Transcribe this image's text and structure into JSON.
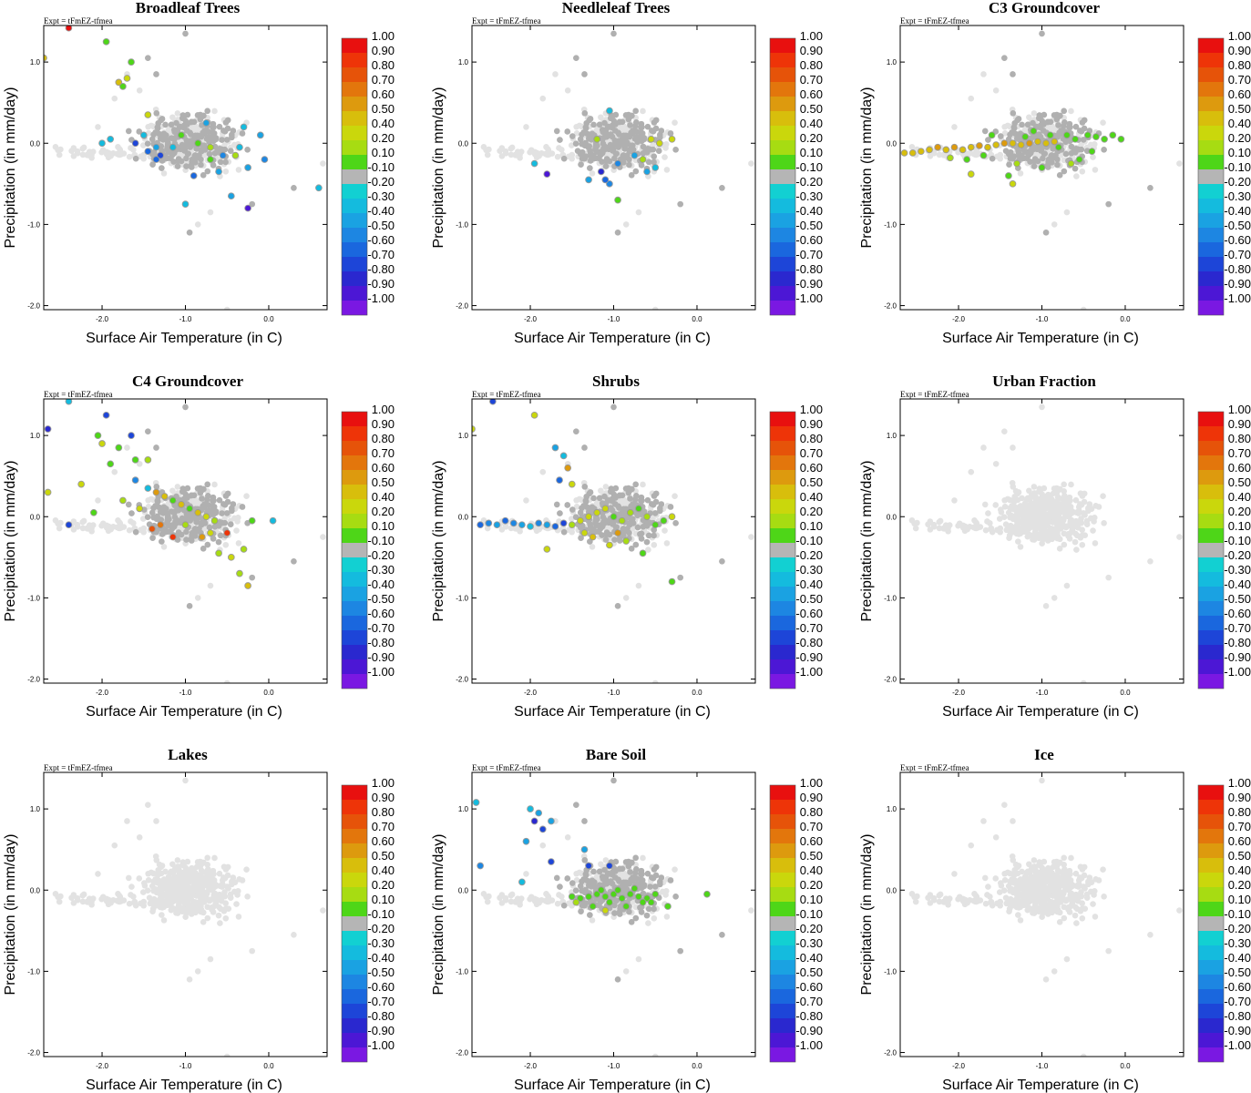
{
  "figure": {
    "expt_label": "Expt = tFmEZ-tfmea",
    "colorbar_levels": [
      "1.00",
      "0.90",
      "0.80",
      "0.70",
      "0.60",
      "0.50",
      "0.40",
      "0.20",
      "0.10",
      "-0.10",
      "-0.20",
      "-0.30",
      "-0.40",
      "-0.50",
      "-0.60",
      "-0.70",
      "-0.80",
      "-0.90",
      "-1.00"
    ],
    "colorbar_colors": [
      "#e8100f",
      "#ee3408",
      "#e65309",
      "#e3760c",
      "#dd9a0e",
      "#d8be0c",
      "#cad70c",
      "#a7dc12",
      "#4ed618",
      "#b5b5b5",
      "#12d0d2",
      "#14bbde",
      "#1aa2e2",
      "#1d86e2",
      "#1a67de",
      "#1d45d8",
      "#2a28cf",
      "#4c17d5",
      "#7a18e2"
    ],
    "neutral_grey": "#b0b0b0",
    "background_grey": "#e2e2e2"
  },
  "chart_data": [
    {
      "type": "scatter",
      "title": "Broadleaf Trees",
      "xlabel": "Surface Air Temperature (in C)",
      "ylabel": "Precipitation (in mm/day)",
      "xlim": [
        -2.7,
        0.7
      ],
      "ylim": [
        -2.05,
        1.45
      ],
      "xticks": [
        "-2.0",
        "-1.0",
        "0.0"
      ],
      "yticks": [
        "1.0",
        "0.0",
        "-1.0",
        "-2.0"
      ],
      "points": [
        [
          -2.4,
          1.42,
          1.0
        ],
        [
          -2.7,
          1.05,
          0.45
        ],
        [
          -1.95,
          1.25,
          0.1
        ],
        [
          -1.65,
          1.0,
          0.1
        ],
        [
          -1.8,
          0.75,
          0.5
        ],
        [
          -1.7,
          0.8,
          0.3
        ],
        [
          -1.45,
          0.35,
          0.3
        ],
        [
          -1.75,
          0.7,
          0.1
        ],
        [
          -1.05,
          0.1,
          0.1
        ],
        [
          -0.85,
          0.0,
          0.1
        ],
        [
          -0.7,
          -0.2,
          0.1
        ],
        [
          -0.4,
          -0.15,
          0.15
        ],
        [
          -0.3,
          0.2,
          -0.2
        ],
        [
          -1.9,
          0.05,
          -0.2
        ],
        [
          -2.0,
          0.0,
          -0.2
        ],
        [
          -1.5,
          0.1,
          -0.2
        ],
        [
          -1.35,
          -0.05,
          -0.3
        ],
        [
          -1.3,
          -0.15,
          -0.6
        ],
        [
          -1.35,
          -0.2,
          -0.5
        ],
        [
          -1.15,
          -0.05,
          -0.2
        ],
        [
          -0.6,
          -0.35,
          -0.3
        ],
        [
          -0.9,
          -0.4,
          -0.5
        ],
        [
          -0.55,
          -0.15,
          -0.4
        ],
        [
          -0.35,
          -0.05,
          -0.2
        ],
        [
          -0.25,
          -0.3,
          -0.3
        ],
        [
          -1.0,
          -0.75,
          -0.2
        ],
        [
          -0.45,
          -0.65,
          -0.3
        ],
        [
          -0.25,
          -0.8,
          -0.8
        ],
        [
          0.6,
          -0.55,
          -0.2
        ],
        [
          -0.75,
          0.25,
          -0.3
        ],
        [
          -1.45,
          -0.1,
          -0.5
        ],
        [
          -0.1,
          0.1,
          -0.3
        ],
        [
          -0.05,
          -0.2,
          -0.4
        ],
        [
          -0.7,
          -0.05,
          0.15
        ],
        [
          -1.6,
          0.0,
          -0.6
        ]
      ]
    },
    {
      "type": "scatter",
      "title": "Needleleaf Trees",
      "xlabel": "Surface Air Temperature (in C)",
      "ylabel": "Precipitation (in mm/day)",
      "xlim": [
        -2.7,
        0.7
      ],
      "ylim": [
        -2.05,
        1.45
      ],
      "xticks": [
        "-2.0",
        "-1.0",
        "0.0"
      ],
      "yticks": [
        "1.0",
        "0.0",
        "-1.0",
        "-2.0"
      ],
      "points": [
        [
          -1.8,
          -0.38,
          -0.8
        ],
        [
          -1.95,
          -0.25,
          -0.2
        ],
        [
          -1.05,
          0.4,
          -0.2
        ],
        [
          -1.2,
          0.05,
          0.15
        ],
        [
          -0.55,
          0.05,
          0.4
        ],
        [
          -0.45,
          0.0,
          0.3
        ],
        [
          -0.75,
          -0.15,
          -0.3
        ],
        [
          -0.95,
          -0.25,
          -0.4
        ],
        [
          -1.05,
          -0.5,
          -0.4
        ],
        [
          -0.95,
          -0.7,
          0.1
        ],
        [
          -0.6,
          -0.35,
          -0.3
        ],
        [
          -0.5,
          -0.3,
          -0.2
        ],
        [
          -0.3,
          0.05,
          0.35
        ],
        [
          -1.1,
          -0.45,
          -0.5
        ],
        [
          -1.3,
          -0.45,
          -0.3
        ],
        [
          -1.15,
          -0.35,
          -0.7
        ],
        [
          -0.65,
          -0.2,
          0.15
        ]
      ]
    },
    {
      "type": "scatter",
      "title": "C3 Groundcover",
      "xlabel": "Surface Air Temperature (in C)",
      "ylabel": "Precipitation (in mm/day)",
      "xlim": [
        -2.7,
        0.7
      ],
      "ylim": [
        -2.05,
        1.45
      ],
      "xticks": [
        "-2.0",
        "-1.0",
        "0.0"
      ],
      "yticks": [
        "1.0",
        "0.0",
        "-1.0",
        "-2.0"
      ],
      "points": [
        [
          -2.65,
          -0.12,
          0.5
        ],
        [
          -2.55,
          -0.12,
          0.5
        ],
        [
          -2.45,
          -0.1,
          0.5
        ],
        [
          -2.35,
          -0.08,
          0.45
        ],
        [
          -2.25,
          -0.05,
          0.6
        ],
        [
          -2.15,
          -0.08,
          0.5
        ],
        [
          -2.05,
          -0.05,
          0.55
        ],
        [
          -1.95,
          -0.08,
          0.5
        ],
        [
          -1.85,
          -0.05,
          0.5
        ],
        [
          -1.75,
          -0.03,
          0.55
        ],
        [
          -1.65,
          -0.05,
          0.5
        ],
        [
          -1.55,
          -0.02,
          0.5
        ],
        [
          -1.45,
          0.0,
          0.55
        ],
        [
          -1.35,
          0.0,
          0.5
        ],
        [
          -1.25,
          -0.02,
          0.5
        ],
        [
          -1.15,
          0.0,
          0.55
        ],
        [
          -1.05,
          0.02,
          0.5
        ],
        [
          -0.95,
          0.0,
          0.5
        ],
        [
          -0.85,
          0.02,
          0.45
        ],
        [
          -2.1,
          -0.18,
          0.2
        ],
        [
          -1.9,
          -0.2,
          0.1
        ],
        [
          -1.7,
          -0.15,
          0.1
        ],
        [
          -1.6,
          0.1,
          0.1
        ],
        [
          -1.3,
          -0.25,
          0.15
        ],
        [
          -1.2,
          0.08,
          0.1
        ],
        [
          -1.1,
          0.15,
          0.1
        ],
        [
          -0.9,
          0.1,
          0.1
        ],
        [
          -0.8,
          -0.05,
          0.1
        ],
        [
          -0.7,
          0.1,
          0.1
        ],
        [
          -0.6,
          0.05,
          0.1
        ],
        [
          -0.55,
          -0.2,
          0.1
        ],
        [
          -0.45,
          0.1,
          0.1
        ],
        [
          -0.35,
          0.08,
          0.1
        ],
        [
          -0.25,
          0.05,
          0.1
        ],
        [
          -0.15,
          0.1,
          0.1
        ],
        [
          -0.05,
          0.05,
          0.1
        ],
        [
          -1.0,
          -0.3,
          0.1
        ],
        [
          -1.4,
          -0.4,
          0.1
        ],
        [
          -1.85,
          -0.38,
          0.3
        ],
        [
          -1.35,
          -0.5,
          0.3
        ],
        [
          -0.65,
          -0.25,
          0.15
        ],
        [
          -0.4,
          -0.1,
          0.1
        ]
      ]
    },
    {
      "type": "scatter",
      "title": "C4 Groundcover",
      "xlabel": "Surface Air Temperature (in C)",
      "ylabel": "Precipitation (in mm/day)",
      "xlim": [
        -2.7,
        0.7
      ],
      "ylim": [
        -2.05,
        1.45
      ],
      "xticks": [
        "-2.0",
        "-1.0",
        "0.0"
      ],
      "yticks": [
        "1.0",
        "0.0",
        "-1.0",
        "-2.0"
      ],
      "points": [
        [
          -2.65,
          1.08,
          -0.7
        ],
        [
          -2.4,
          1.42,
          -0.2
        ],
        [
          -1.95,
          1.25,
          -0.6
        ],
        [
          -2.05,
          1.0,
          0.1
        ],
        [
          -1.65,
          1.0,
          -0.6
        ],
        [
          -2.0,
          0.9,
          0.3
        ],
        [
          -1.8,
          0.85,
          0.1
        ],
        [
          -1.6,
          0.7,
          0.1
        ],
        [
          -1.45,
          0.7,
          0.15
        ],
        [
          -1.9,
          0.65,
          0.1
        ],
        [
          -2.65,
          0.3,
          0.4
        ],
        [
          -2.25,
          0.4,
          0.4
        ],
        [
          -1.6,
          0.45,
          -0.4
        ],
        [
          -1.45,
          0.35,
          -0.2
        ],
        [
          -1.35,
          0.3,
          0.6
        ],
        [
          -1.25,
          0.25,
          0.5
        ],
        [
          -1.15,
          0.2,
          0.1
        ],
        [
          -1.05,
          0.15,
          0.5
        ],
        [
          -0.95,
          0.1,
          0.1
        ],
        [
          -0.85,
          0.05,
          0.5
        ],
        [
          -0.75,
          0.0,
          0.4
        ],
        [
          -0.65,
          -0.05,
          0.15
        ],
        [
          -1.4,
          -0.15,
          0.8
        ],
        [
          -1.3,
          -0.1,
          0.7
        ],
        [
          -1.15,
          -0.25,
          0.9
        ],
        [
          -0.8,
          -0.25,
          0.6
        ],
        [
          -0.5,
          -0.2,
          0.9
        ],
        [
          -0.45,
          -0.5,
          0.3
        ],
        [
          -0.6,
          -0.45,
          0.15
        ],
        [
          -0.3,
          -0.4,
          0.2
        ],
        [
          -0.25,
          -0.85,
          0.5
        ],
        [
          -0.35,
          -0.7,
          0.15
        ],
        [
          -2.4,
          -0.1,
          -0.6
        ],
        [
          -2.1,
          0.05,
          0.1
        ],
        [
          -1.0,
          -0.1,
          0.15
        ],
        [
          -0.2,
          -0.05,
          0.1
        ],
        [
          0.05,
          -0.05,
          -0.2
        ],
        [
          -0.7,
          -0.2,
          0.3
        ],
        [
          -1.55,
          0.1,
          0.4
        ],
        [
          -1.75,
          0.2,
          0.15
        ]
      ]
    },
    {
      "type": "scatter",
      "title": "Shrubs",
      "xlabel": "Surface Air Temperature (in C)",
      "ylabel": "Precipitation (in mm/day)",
      "xlim": [
        -2.7,
        0.7
      ],
      "ylim": [
        -2.05,
        1.45
      ],
      "xticks": [
        "-2.0",
        "-1.0",
        "0.0"
      ],
      "yticks": [
        "1.0",
        "0.0",
        "-1.0",
        "-2.0"
      ],
      "points": [
        [
          -2.7,
          1.08,
          0.3
        ],
        [
          -2.45,
          1.42,
          -0.6
        ],
        [
          -1.95,
          1.25,
          0.4
        ],
        [
          -1.7,
          0.85,
          -0.3
        ],
        [
          -1.6,
          0.75,
          -0.2
        ],
        [
          -1.55,
          0.6,
          0.6
        ],
        [
          -1.65,
          0.45,
          -0.5
        ],
        [
          -1.5,
          0.4,
          0.3
        ],
        [
          -2.6,
          -0.1,
          -0.5
        ],
        [
          -2.5,
          -0.08,
          -0.4
        ],
        [
          -2.4,
          -0.1,
          -0.3
        ],
        [
          -2.3,
          -0.05,
          -0.5
        ],
        [
          -2.2,
          -0.08,
          -0.4
        ],
        [
          -2.1,
          -0.1,
          -0.3
        ],
        [
          -2.0,
          -0.12,
          -0.2
        ],
        [
          -1.9,
          -0.08,
          -0.4
        ],
        [
          -1.8,
          -0.1,
          -0.3
        ],
        [
          -1.7,
          -0.12,
          -0.5
        ],
        [
          -1.6,
          -0.08,
          -0.6
        ],
        [
          -1.5,
          -0.1,
          0.15
        ],
        [
          -1.4,
          -0.05,
          0.4
        ],
        [
          -1.3,
          0.0,
          0.3
        ],
        [
          -1.2,
          0.05,
          0.4
        ],
        [
          -1.1,
          0.1,
          0.35
        ],
        [
          -1.0,
          0.0,
          0.1
        ],
        [
          -0.9,
          -0.05,
          0.2
        ],
        [
          -0.8,
          0.05,
          0.15
        ],
        [
          -0.7,
          0.1,
          0.1
        ],
        [
          -0.6,
          0.0,
          0.15
        ],
        [
          -0.5,
          -0.1,
          0.1
        ],
        [
          -0.4,
          -0.05,
          0.1
        ],
        [
          -0.3,
          0.0,
          0.3
        ],
        [
          -1.25,
          -0.25,
          0.5
        ],
        [
          -1.05,
          -0.35,
          0.4
        ],
        [
          -0.85,
          -0.3,
          0.15
        ],
        [
          -0.65,
          -0.45,
          0.1
        ],
        [
          -1.8,
          -0.4,
          0.4
        ],
        [
          -0.3,
          -0.8,
          0.1
        ],
        [
          -1.35,
          -0.2,
          0.3
        ],
        [
          -0.95,
          -0.2,
          0.6
        ]
      ]
    },
    {
      "type": "scatter",
      "title": "Urban Fraction",
      "xlabel": "Surface Air Temperature (in C)",
      "ylabel": "Precipitation (in mm/day)",
      "xlim": [
        -2.7,
        0.7
      ],
      "ylim": [
        -2.05,
        1.45
      ],
      "xticks": [
        "-2.0",
        "-1.0",
        "0.0"
      ],
      "yticks": [
        "1.0",
        "0.0",
        "-1.0",
        "-2.0"
      ],
      "points": []
    },
    {
      "type": "scatter",
      "title": "Lakes",
      "xlabel": "Surface Air Temperature (in C)",
      "ylabel": "Precipitation (in mm/day)",
      "xlim": [
        -2.7,
        0.7
      ],
      "ylim": [
        -2.05,
        1.45
      ],
      "xticks": [
        "-2.0",
        "-1.0",
        "0.0"
      ],
      "yticks": [
        "1.0",
        "0.0",
        "-1.0",
        "-2.0"
      ],
      "points": []
    },
    {
      "type": "scatter",
      "title": "Bare Soil",
      "xlabel": "Surface Air Temperature (in C)",
      "ylabel": "Precipitation (in mm/day)",
      "xlim": [
        -2.7,
        0.7
      ],
      "ylim": [
        -2.05,
        1.45
      ],
      "xticks": [
        "-2.0",
        "-1.0",
        "0.0"
      ],
      "yticks": [
        "1.0",
        "0.0",
        "-1.0",
        "-2.0"
      ],
      "points": [
        [
          -2.65,
          1.08,
          -0.2
        ],
        [
          -2.6,
          0.3,
          -0.4
        ],
        [
          -2.0,
          1.0,
          -0.2
        ],
        [
          -1.9,
          0.95,
          -0.3
        ],
        [
          -1.75,
          0.85,
          -0.3
        ],
        [
          -1.95,
          0.85,
          -0.7
        ],
        [
          -1.85,
          0.75,
          -0.6
        ],
        [
          -2.05,
          0.6,
          -0.3
        ],
        [
          -1.75,
          0.35,
          -0.6
        ],
        [
          -1.35,
          0.5,
          -0.3
        ],
        [
          -1.3,
          0.3,
          -0.6
        ],
        [
          -1.05,
          0.3,
          -0.6
        ],
        [
          -2.1,
          0.1,
          -0.2
        ],
        [
          -1.5,
          -0.08,
          0.1
        ],
        [
          -1.4,
          -0.1,
          0.1
        ],
        [
          -1.3,
          -0.08,
          0.1
        ],
        [
          -1.2,
          -0.05,
          0.1
        ],
        [
          -1.1,
          -0.08,
          0.1
        ],
        [
          -1.0,
          -0.05,
          0.1
        ],
        [
          -0.9,
          -0.1,
          0.1
        ],
        [
          -0.8,
          -0.05,
          0.1
        ],
        [
          -0.7,
          -0.08,
          0.1
        ],
        [
          -0.6,
          -0.1,
          0.1
        ],
        [
          -0.5,
          -0.05,
          0.1
        ],
        [
          -1.45,
          -0.15,
          0.15
        ],
        [
          -1.25,
          -0.2,
          0.1
        ],
        [
          -1.05,
          -0.15,
          0.1
        ],
        [
          -0.85,
          -0.2,
          0.1
        ],
        [
          -0.65,
          -0.15,
          0.1
        ],
        [
          -1.15,
          0.0,
          0.1
        ],
        [
          -0.95,
          0.0,
          0.1
        ],
        [
          -0.75,
          0.02,
          0.1
        ],
        [
          -0.55,
          -0.15,
          0.1
        ],
        [
          0.12,
          -0.05,
          0.1
        ],
        [
          -1.1,
          -0.25,
          0.3
        ],
        [
          -0.35,
          -0.2,
          0.1
        ]
      ]
    },
    {
      "type": "scatter",
      "title": "Ice",
      "xlabel": "Surface Air Temperature (in C)",
      "ylabel": "Precipitation (in mm/day)",
      "xlim": [
        -2.7,
        0.7
      ],
      "ylim": [
        -2.05,
        1.45
      ],
      "xticks": [
        "-2.0",
        "-1.0",
        "0.0"
      ],
      "yticks": [
        "1.0",
        "0.0",
        "-1.0",
        "-2.0"
      ],
      "points": []
    }
  ]
}
